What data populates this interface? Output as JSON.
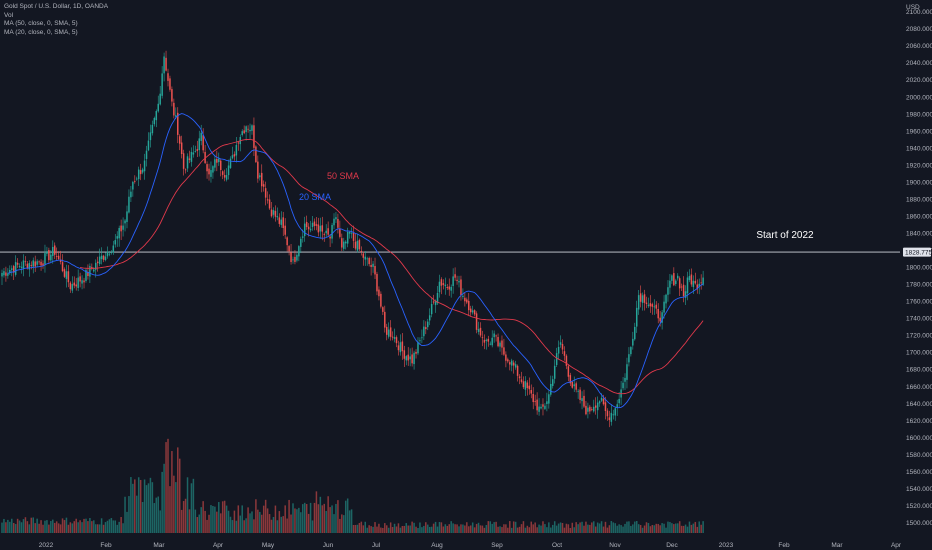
{
  "legend": {
    "symbol": "Gold Spot / U.S. Dollar, 1D, OANDA",
    "vol": "Vol",
    "ma50": "MA (50, close, 0, SMA, 5)",
    "ma20": "MA (20, close, 0, SMA, 5)"
  },
  "chart_data": {
    "type": "candlestick",
    "currency": "USD",
    "y_ticks": [
      "2100.000",
      "2080.000",
      "2060.000",
      "2040.000",
      "2020.000",
      "2000.000",
      "1980.000",
      "1960.000",
      "1940.000",
      "1920.000",
      "1900.000",
      "1880.000",
      "1860.000",
      "1840.000",
      "1820.000",
      "1800.000",
      "1780.000",
      "1760.000",
      "1740.000",
      "1720.000",
      "1700.000",
      "1680.000",
      "1660.000",
      "1640.000",
      "1620.000",
      "1600.000",
      "1580.000",
      "1560.000",
      "1540.000",
      "1520.000",
      "1500.000"
    ],
    "x_ticks": [
      "2022",
      "Feb",
      "Mar",
      "Apr",
      "May",
      "Jun",
      "Jul",
      "Aug",
      "Sep",
      "Oct",
      "Nov",
      "Dec",
      "2023",
      "Feb",
      "Mar",
      "Apr"
    ],
    "ylim": [
      1493,
      2112
    ],
    "colors": {
      "up": "#26a69a",
      "down": "#ef5350",
      "ma20": "#2962ff",
      "ma50": "#e0394b",
      "hline": "#d1d4dc"
    },
    "hline": {
      "value": 1828.775,
      "label": "1828.775"
    },
    "annotations": [
      {
        "text": "Start of 2022",
        "color": "#ffffff"
      },
      {
        "text": "50 SMA",
        "color": "#e0394b"
      },
      {
        "text": "20 SMA",
        "color": "#2962ff"
      }
    ],
    "anchors": [
      [
        0,
        1805
      ],
      [
        10,
        1815
      ],
      [
        20,
        1818
      ],
      [
        27,
        1830
      ],
      [
        35,
        1790
      ],
      [
        42,
        1800
      ],
      [
        50,
        1820
      ],
      [
        58,
        1840
      ],
      [
        63,
        1865
      ],
      [
        67,
        1910
      ],
      [
        70,
        1920
      ],
      [
        73,
        1930
      ],
      [
        76,
        1960
      ],
      [
        80,
        1998
      ],
      [
        83,
        2055
      ],
      [
        87,
        1998
      ],
      [
        90,
        1970
      ],
      [
        93,
        1925
      ],
      [
        96,
        1935
      ],
      [
        99,
        1945
      ],
      [
        102,
        1960
      ],
      [
        106,
        1915
      ],
      [
        110,
        1935
      ],
      [
        114,
        1920
      ],
      [
        118,
        1935
      ],
      [
        121,
        1960
      ],
      [
        125,
        1975
      ],
      [
        128,
        1970
      ],
      [
        131,
        1920
      ],
      [
        134,
        1905
      ],
      [
        137,
        1880
      ],
      [
        140,
        1870
      ],
      [
        143,
        1860
      ],
      [
        146,
        1840
      ],
      [
        149,
        1815
      ],
      [
        152,
        1840
      ],
      [
        155,
        1860
      ],
      [
        158,
        1855
      ],
      [
        161,
        1860
      ],
      [
        164,
        1850
      ],
      [
        168,
        1845
      ],
      [
        171,
        1870
      ],
      [
        174,
        1830
      ],
      [
        178,
        1850
      ],
      [
        182,
        1835
      ],
      [
        186,
        1820
      ],
      [
        190,
        1810
      ],
      [
        193,
        1780
      ],
      [
        196,
        1740
      ],
      [
        200,
        1735
      ],
      [
        205,
        1715
      ],
      [
        210,
        1705
      ],
      [
        213,
        1720
      ],
      [
        217,
        1745
      ],
      [
        221,
        1770
      ],
      [
        224,
        1795
      ],
      [
        228,
        1790
      ],
      [
        232,
        1800
      ],
      [
        236,
        1780
      ],
      [
        240,
        1765
      ],
      [
        244,
        1740
      ],
      [
        248,
        1725
      ],
      [
        252,
        1730
      ],
      [
        256,
        1715
      ],
      [
        260,
        1705
      ],
      [
        264,
        1690
      ],
      [
        268,
        1675
      ],
      [
        272,
        1660
      ],
      [
        276,
        1645
      ],
      [
        280,
        1665
      ],
      [
        283,
        1700
      ],
      [
        286,
        1725
      ],
      [
        289,
        1700
      ],
      [
        292,
        1675
      ],
      [
        296,
        1660
      ],
      [
        300,
        1645
      ],
      [
        303,
        1655
      ],
      [
        306,
        1660
      ],
      [
        310,
        1640
      ],
      [
        314,
        1650
      ],
      [
        318,
        1678
      ],
      [
        322,
        1720
      ],
      [
        326,
        1780
      ],
      [
        330,
        1775
      ],
      [
        334,
        1760
      ],
      [
        338,
        1755
      ],
      [
        342,
        1795
      ],
      [
        346,
        1800
      ],
      [
        349,
        1780
      ],
      [
        352,
        1800
      ],
      [
        355,
        1790
      ],
      [
        359,
        1802
      ]
    ]
  }
}
